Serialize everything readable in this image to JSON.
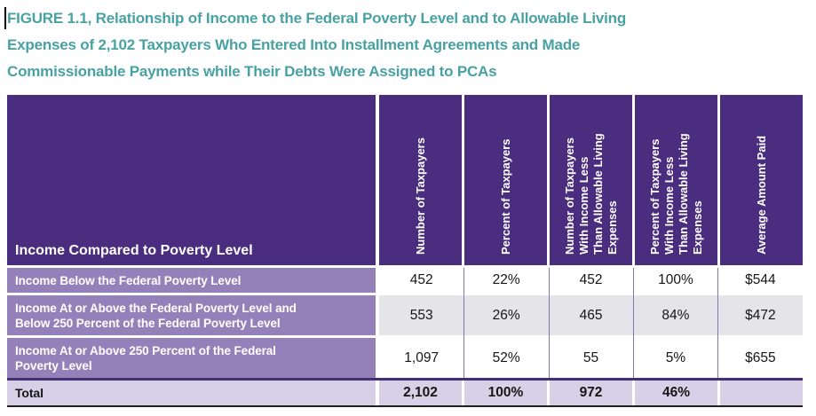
{
  "figure": {
    "title_lines": [
      "FIGURE 1.1, Relationship of Income to the Federal Poverty Level and to Allowable Living",
      "Expenses of 2,102 Taxpayers Who Entered Into Installment Agreements and Made",
      "Commissionable Payments while Their Debts Were Assigned to PCAs"
    ]
  },
  "table": {
    "row_header_label": "Income Compared to Poverty Level",
    "columns": [
      "Number of Taxpayers",
      "Percent of Taxpayers",
      "Number of Taxpayers\nWith Income Less\nThan Allowable Living\nExpenses",
      "Percent of Taxpayers\nWith Income Less\nThan Allowable Living\nExpenses",
      "Average Amount Paid"
    ],
    "rows": [
      {
        "label": "Income Below the Federal Poverty Level",
        "values": [
          "452",
          "22%",
          "452",
          "100%",
          "$544"
        ]
      },
      {
        "label": "Income At or Above the Federal Poverty Level and\nBelow 250 Percent of the Federal Poverty Level",
        "values": [
          "553",
          "26%",
          "465",
          "84%",
          "$472"
        ]
      },
      {
        "label": "Income At or Above 250 Percent of the Federal\nPoverty Level",
        "values": [
          "1,097",
          "52%",
          "55",
          "5%",
          "$655"
        ]
      }
    ],
    "total_row": {
      "label": "Total",
      "values": [
        "2,102",
        "100%",
        "972",
        "46%",
        ""
      ]
    }
  },
  "colors": {
    "title_teal": "#48A1A3",
    "header_purple": "#4B2D7F",
    "row_label_purple": "#9481BA",
    "alt_row_gray": "#E5E4E9",
    "total_row_lavender": "#D7D0E6",
    "column_divider_purple": "#8474AC",
    "total_divider_purple": "#423072",
    "bottom_border_black": "#231F20"
  }
}
